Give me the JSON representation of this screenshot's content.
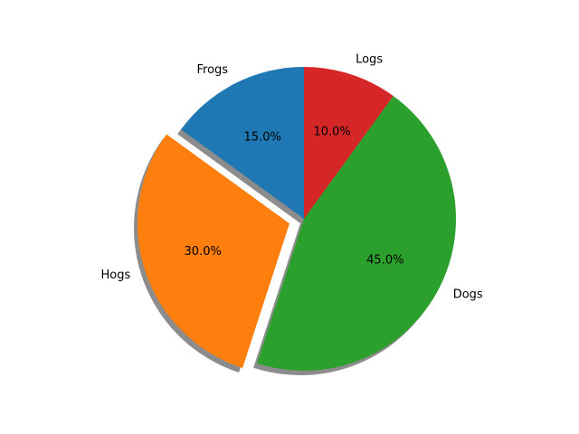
{
  "chart_data": {
    "type": "pie",
    "categories": [
      "Frogs",
      "Hogs",
      "Dogs",
      "Logs"
    ],
    "values": [
      15,
      30,
      45,
      10
    ],
    "percent_labels": [
      "15.0%",
      "30.0%",
      "45.0%",
      "10.0%"
    ],
    "colors": [
      "#1f77b4",
      "#ff7f0e",
      "#2ca02c",
      "#d62728"
    ],
    "explode": [
      0,
      0.1,
      0,
      0
    ],
    "start_angle_deg": 90,
    "direction": "counterclockwise",
    "shadow": true,
    "title": "",
    "legend": "none"
  }
}
